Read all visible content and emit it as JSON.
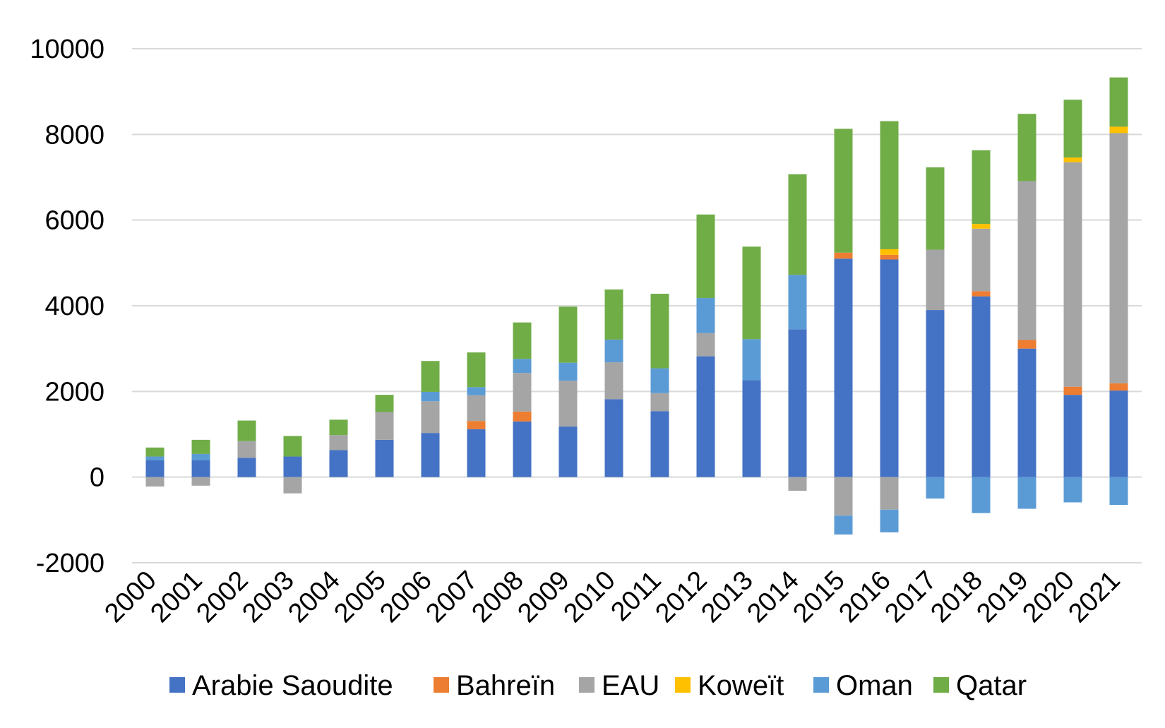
{
  "chart_data": {
    "type": "bar",
    "stacked": true,
    "title": "",
    "xlabel": "",
    "ylabel": "",
    "ylim": [
      -2000,
      10000
    ],
    "yticks": [
      -2000,
      0,
      2000,
      4000,
      6000,
      8000,
      10000
    ],
    "grid": true,
    "legend_position": "bottom",
    "categories": [
      "2000",
      "2001",
      "2002",
      "2003",
      "2004",
      "2005",
      "2006",
      "2007",
      "2008",
      "2009",
      "2010",
      "2011",
      "2012",
      "2013",
      "2014",
      "2015",
      "2016",
      "2017",
      "2018",
      "2019",
      "2020",
      "2021"
    ],
    "series": [
      {
        "name": "Arabie Saoudite",
        "color": "#4472C4",
        "values": [
          390,
          390,
          450,
          480,
          630,
          870,
          1030,
          1120,
          1300,
          1180,
          1820,
          1540,
          2820,
          2260,
          3450,
          5100,
          5080,
          3900,
          4220,
          3000,
          1920,
          2020
        ]
      },
      {
        "name": "Bahreïn",
        "color": "#ED7D31",
        "values": [
          0,
          0,
          0,
          0,
          0,
          0,
          0,
          190,
          230,
          0,
          0,
          0,
          0,
          0,
          0,
          140,
          110,
          0,
          120,
          200,
          190,
          170
        ]
      },
      {
        "name": "EAU",
        "color": "#A5A5A5",
        "values": [
          -220,
          -200,
          390,
          -380,
          350,
          650,
          740,
          600,
          900,
          1070,
          860,
          420,
          540,
          0,
          -320,
          -900,
          -760,
          1410,
          1460,
          3710,
          5240,
          5840
        ]
      },
      {
        "name": "Koweït",
        "color": "#FFC000",
        "values": [
          0,
          0,
          0,
          0,
          0,
          0,
          0,
          0,
          0,
          0,
          0,
          0,
          0,
          0,
          0,
          0,
          130,
          0,
          110,
          0,
          110,
          150
        ]
      },
      {
        "name": "Oman",
        "color": "#5B9BD5",
        "values": [
          90,
          150,
          0,
          0,
          0,
          0,
          220,
          190,
          330,
          420,
          530,
          580,
          820,
          960,
          1270,
          -440,
          -530,
          -500,
          -840,
          -740,
          -590,
          -650
        ]
      },
      {
        "name": "Qatar",
        "color": "#70AD47",
        "values": [
          210,
          330,
          480,
          480,
          360,
          400,
          720,
          810,
          850,
          1310,
          1170,
          1740,
          1950,
          2160,
          2350,
          2890,
          2990,
          1920,
          1720,
          1570,
          1350,
          1150
        ]
      }
    ]
  }
}
